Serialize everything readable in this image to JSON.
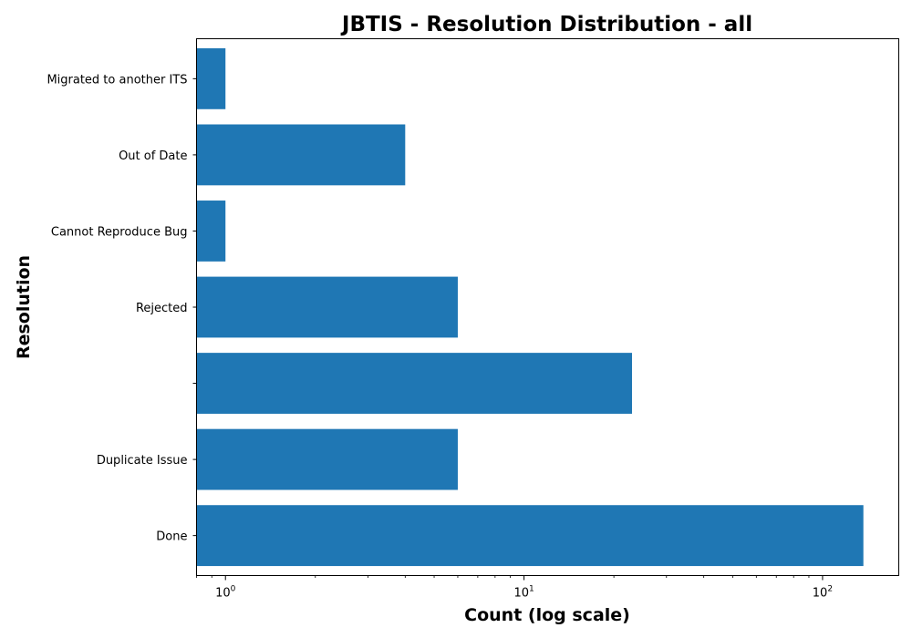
{
  "chart_data": {
    "type": "bar",
    "orientation": "horizontal",
    "title": "JBTIS - Resolution Distribution - all",
    "xlabel": "Count (log scale)",
    "ylabel": "Resolution",
    "x_scale": "log",
    "xlim": [
      0.8,
      180
    ],
    "x_ticks": [
      {
        "base": "10",
        "exp": "0",
        "value": 1
      },
      {
        "base": "10",
        "exp": "1",
        "value": 10
      },
      {
        "base": "10",
        "exp": "2",
        "value": 100
      }
    ],
    "categories": [
      "Done",
      "Duplicate Issue",
      "",
      "Rejected",
      "Cannot Reproduce Bug",
      "Out of Date",
      "Migrated to another ITS"
    ],
    "values": [
      137,
      6,
      23,
      6,
      1,
      4,
      1
    ],
    "bar_color": "#1f77b4",
    "grid": false,
    "legend": "none"
  }
}
